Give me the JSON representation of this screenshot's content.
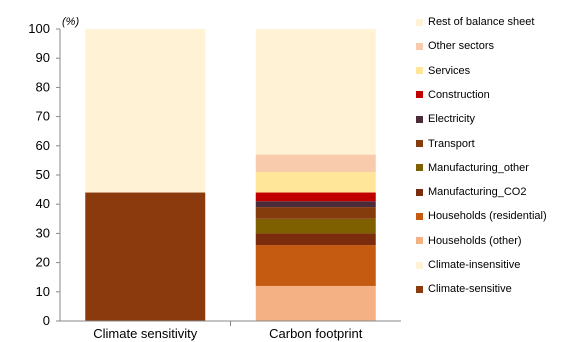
{
  "chart_data": {
    "type": "bar",
    "stacked": true,
    "categories": [
      "Climate sensitivity",
      "Carbon footprint"
    ],
    "y_unit_label": "(%)",
    "ylim": [
      0,
      100
    ],
    "yticks": [
      0,
      10,
      20,
      30,
      40,
      50,
      60,
      70,
      80,
      90,
      100
    ],
    "grid": false,
    "legend_position": "right",
    "series": [
      {
        "name": "Climate-sensitive",
        "color": "#8B3A0E",
        "values": [
          44,
          0
        ]
      },
      {
        "name": "Climate-insensitive",
        "color": "#FFF2D5",
        "values": [
          56,
          0
        ]
      },
      {
        "name": "Households (other)",
        "color": "#F4B183",
        "values": [
          0,
          12
        ]
      },
      {
        "name": "Households (residential)",
        "color": "#C55A11",
        "values": [
          0,
          14
        ]
      },
      {
        "name": "Manufacturing_CO2",
        "color": "#7B2C0C",
        "values": [
          0,
          4
        ]
      },
      {
        "name": "Manufacturing_other",
        "color": "#7F6000",
        "values": [
          0,
          5
        ]
      },
      {
        "name": "Transport",
        "color": "#843C0C",
        "values": [
          0,
          4
        ]
      },
      {
        "name": "Electricity",
        "color": "#4B2A3A",
        "values": [
          0,
          2
        ]
      },
      {
        "name": "Construction",
        "color": "#C00000",
        "values": [
          0,
          3
        ]
      },
      {
        "name": "Services",
        "color": "#FFE699",
        "values": [
          0,
          7
        ]
      },
      {
        "name": "Other sectors",
        "color": "#F8CBAD",
        "values": [
          0,
          6
        ]
      },
      {
        "name": "Rest of balance sheet",
        "color": "#FFF2D5",
        "values": [
          0,
          43
        ]
      }
    ]
  }
}
